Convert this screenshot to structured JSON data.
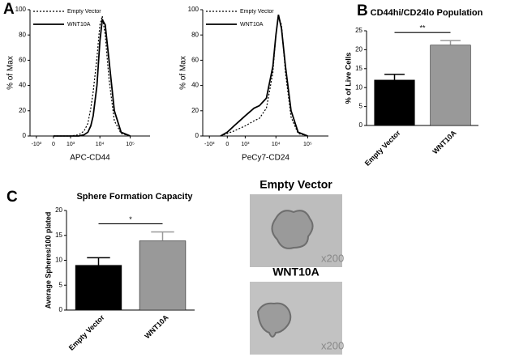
{
  "chart_data": [
    {
      "type": "line",
      "panel": "A",
      "xlabel": "APC-CD44",
      "ylabel": "% of Max",
      "x": [
        0,
        1000,
        2000,
        3000,
        4000,
        5000,
        6000,
        8000,
        10000,
        12000,
        15000,
        20000,
        30000,
        50000,
        100000
      ],
      "series": [
        {
          "name": "Empty Vector",
          "color": "#000000",
          "dashed": true,
          "values": [
            0,
            0,
            1,
            4,
            10,
            22,
            35,
            62,
            88,
            95,
            80,
            45,
            12,
            2,
            0
          ]
        },
        {
          "name": "WNT10A",
          "color": "#000000",
          "dashed": false,
          "values": [
            0,
            0,
            0,
            1,
            3,
            8,
            16,
            40,
            75,
            92,
            88,
            60,
            20,
            3,
            0
          ]
        }
      ],
      "xscale": "biexponential",
      "xlim": [
        -1700,
        450000
      ],
      "xticks": [
        {
          "value": -1000,
          "label": "-10³"
        },
        0,
        {
          "value": 1000,
          "label": "10³"
        },
        {
          "value": 10000,
          "label": "10⁴"
        },
        {
          "value": 100000,
          "label": "10⁵"
        }
      ],
      "ylim": [
        0,
        100
      ],
      "yticks": [
        0,
        20,
        40,
        60,
        80,
        100
      ]
    },
    {
      "type": "line",
      "xlabel": "PeCy7-CD24",
      "ylabel": "% of Max",
      "x": [
        -300,
        0,
        300,
        600,
        1000,
        2000,
        3000,
        5000,
        8000,
        10000,
        12000,
        15000,
        20000,
        30000,
        50000,
        100000
      ],
      "series": [
        {
          "name": "Empty Vector",
          "color": "#000000",
          "dashed": true,
          "values": [
            0,
            2,
            4,
            6,
            8,
            12,
            14,
            22,
            50,
            80,
            95,
            88,
            50,
            15,
            2,
            0
          ]
        },
        {
          "name": "WNT10A",
          "color": "#000000",
          "dashed": false,
          "values": [
            0,
            3,
            8,
            12,
            16,
            22,
            24,
            30,
            55,
            80,
            96,
            85,
            55,
            20,
            3,
            0
          ]
        }
      ],
      "xscale": "biexponential",
      "xlim": [
        -1700,
        450000
      ],
      "xticks": [
        {
          "value": -1000,
          "label": "-10³"
        },
        0,
        {
          "value": 1000,
          "label": "10³"
        },
        {
          "value": 10000,
          "label": "10⁴"
        },
        {
          "value": 100000,
          "label": "10⁵"
        }
      ],
      "ylim": [
        0,
        100
      ],
      "yticks": [
        0,
        20,
        40,
        60,
        80,
        100
      ]
    },
    {
      "type": "bar",
      "panel": "B",
      "title": "CD44hi/CD24lo Population",
      "ylabel": "% of Live Cells",
      "categories": [
        "Empty Vector",
        "WNT10A"
      ],
      "values": [
        12,
        21.2
      ],
      "errors": [
        1.5,
        1.2
      ],
      "colors": [
        "#000000",
        "#999999"
      ],
      "significance": "**",
      "ylim": [
        0,
        25
      ],
      "yticks": [
        0,
        5,
        10,
        15,
        20,
        25
      ]
    },
    {
      "type": "bar",
      "panel": "C",
      "title": "Sphere Formation Capacity",
      "ylabel": "Average Spheres/100 plated",
      "categories": [
        "Empty Vector",
        "WNT10A"
      ],
      "values": [
        9,
        13.9
      ],
      "errors": [
        1.5,
        1.8
      ],
      "colors": [
        "#000000",
        "#999999"
      ],
      "significance": "*",
      "ylim": [
        0,
        20
      ],
      "yticks": [
        0,
        5,
        10,
        15,
        20
      ]
    }
  ],
  "images": [
    {
      "title": "Empty Vector",
      "magnification": "x200"
    },
    {
      "title": "WNT10A",
      "magnification": "x200"
    }
  ]
}
